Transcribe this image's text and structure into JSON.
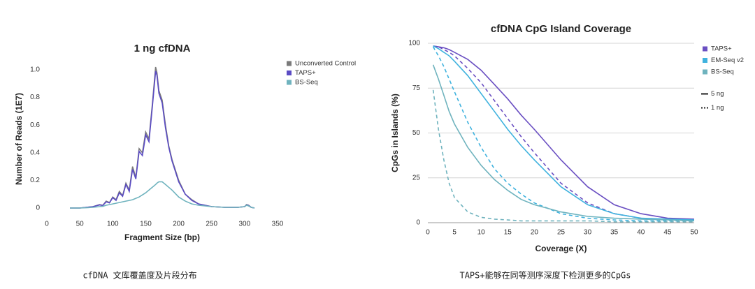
{
  "chart_data": [
    {
      "type": "line",
      "title": "1 ng cfDNA",
      "xlabel": "Fragment Size (bp)",
      "ylabel": "Number of Reads (1E7)",
      "caption": "cfDNA 文库覆盖度及片段分布",
      "xlim": [
        0,
        350
      ],
      "xticks": [
        0,
        50,
        100,
        150,
        200,
        250,
        300,
        350
      ],
      "ylim": [
        0,
        1
      ],
      "yticks": [
        0,
        0.2,
        0.4,
        0.6,
        0.8,
        {
          "value": 1,
          "label": "1.0"
        }
      ],
      "grid": false,
      "x": [
        35,
        50,
        60,
        70,
        80,
        85,
        90,
        95,
        100,
        105,
        110,
        115,
        120,
        125,
        130,
        135,
        140,
        145,
        150,
        155,
        160,
        165,
        167,
        170,
        175,
        180,
        185,
        190,
        200,
        210,
        220,
        230,
        250,
        270,
        290,
        300,
        303,
        306,
        310,
        315
      ],
      "series": [
        {
          "name": "Unconverted Control",
          "color": "#7a7a7a",
          "values": [
            0,
            0,
            0.005,
            0.01,
            0.025,
            0.02,
            0.05,
            0.04,
            0.08,
            0.06,
            0.12,
            0.09,
            0.18,
            0.13,
            0.3,
            0.22,
            0.43,
            0.4,
            0.55,
            0.5,
            0.75,
            1.02,
            0.98,
            0.85,
            0.78,
            0.6,
            0.45,
            0.35,
            0.2,
            0.1,
            0.06,
            0.03,
            0.01,
            0.005,
            0.005,
            0.01,
            0.025,
            0.02,
            0.005,
            0
          ]
        },
        {
          "name": "TAPS+",
          "color": "#5b4cc4",
          "values": [
            0,
            0,
            0.005,
            0.01,
            0.022,
            0.018,
            0.045,
            0.037,
            0.075,
            0.055,
            0.11,
            0.085,
            0.17,
            0.12,
            0.28,
            0.21,
            0.41,
            0.38,
            0.53,
            0.48,
            0.73,
            0.99,
            0.96,
            0.83,
            0.76,
            0.58,
            0.44,
            0.34,
            0.19,
            0.1,
            0.055,
            0.03,
            0.01,
            0.005,
            0.005,
            0.01,
            0.022,
            0.018,
            0.005,
            0
          ]
        },
        {
          "name": "BS-Seq",
          "color": "#6fb3be",
          "values": [
            0,
            0,
            0.002,
            0.005,
            0.01,
            0.012,
            0.02,
            0.025,
            0.03,
            0.035,
            0.04,
            0.045,
            0.05,
            0.055,
            0.06,
            0.07,
            0.08,
            0.095,
            0.11,
            0.13,
            0.15,
            0.17,
            0.18,
            0.19,
            0.19,
            0.17,
            0.15,
            0.13,
            0.08,
            0.05,
            0.03,
            0.02,
            0.01,
            0.005,
            0.005,
            0.01,
            0.02,
            0.015,
            0.005,
            0
          ]
        }
      ]
    },
    {
      "type": "line",
      "title": "cfDNA CpG Island Coverage",
      "xlabel": "Coverage (X)",
      "ylabel": "CpGs in Islands (%)",
      "caption": "TAPS+能够在同等测序深度下检测更多的CpGs",
      "xlim": [
        0,
        50
      ],
      "xticks": [
        0,
        5,
        10,
        15,
        20,
        25,
        30,
        35,
        40,
        45,
        50
      ],
      "ylim": [
        0,
        100
      ],
      "yticks": [
        0,
        25,
        50,
        75,
        100
      ],
      "grid": true,
      "inputs": [
        {
          "label": "5 ng",
          "dash": false
        },
        {
          "label": "1 ng",
          "dash": true
        }
      ],
      "x": [
        1,
        2,
        3,
        4,
        5,
        7.5,
        10,
        12.5,
        15,
        17.5,
        20,
        25,
        30,
        35,
        40,
        45,
        50
      ],
      "series": [
        {
          "name": "TAPS+",
          "color": "#6a4fc2",
          "values": [
            [
              98.5,
              98,
              97.5,
              96.5,
              95,
              91,
              85,
              77,
              69,
              60,
              52,
              35,
              20,
              10,
              5,
              2.5,
              2
            ],
            [
              98.5,
              98,
              96.5,
              95,
              93,
              86,
              78,
              68,
              58,
              48,
              39,
              22,
              11,
              5,
              2.5,
              1.5,
              1
            ]
          ]
        },
        {
          "name": "EM-Seq v2",
          "color": "#3fb2de",
          "values": [
            [
              98.5,
              97,
              95,
              93,
              90,
              82,
              72,
              62,
              52,
              43,
              35,
              20,
              10,
              5,
              2.5,
              2,
              1.5
            ],
            [
              98,
              93,
              87,
              80,
              73,
              56,
              42,
              30,
              22,
              16,
              11,
              5,
              2.5,
              1.5,
              1,
              1,
              1
            ]
          ]
        },
        {
          "name": "BS-Seq",
          "color": "#6fb3be",
          "values": [
            [
              88,
              80,
              71,
              62,
              55,
              42,
              32,
              24,
              18,
              13,
              10,
              6,
              3.5,
              2.5,
              2,
              1.5,
              1
            ],
            [
              74,
              52,
              35,
              22,
              14,
              6,
              3,
              2,
              1.5,
              1,
              1,
              1,
              1,
              0.5,
              0.5,
              0.5,
              0.5
            ]
          ]
        }
      ]
    }
  ]
}
